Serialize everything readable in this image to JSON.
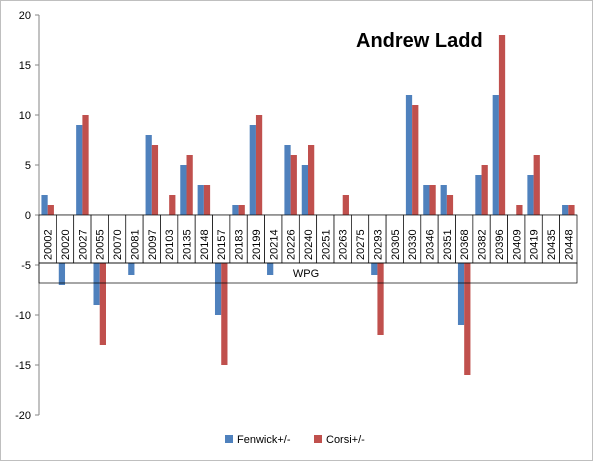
{
  "chart_data": {
    "type": "bar",
    "title": "Andrew Ladd",
    "group_label": "WPG",
    "categories": [
      "20002",
      "20020",
      "20027",
      "20055",
      "20070",
      "20081",
      "20097",
      "20103",
      "20135",
      "20148",
      "20157",
      "20183",
      "20199",
      "20214",
      "20226",
      "20240",
      "20251",
      "20263",
      "20275",
      "20293",
      "20305",
      "20330",
      "20346",
      "20351",
      "20368",
      "20382",
      "20396",
      "20409",
      "20419",
      "20435",
      "20448"
    ],
    "series": [
      {
        "name": "Fenwick+/-",
        "color": "#4f81bd",
        "values": [
          2,
          -7,
          9,
          -9,
          -1,
          -6,
          8,
          -1,
          5,
          3,
          -10,
          1,
          9,
          -6,
          7,
          5,
          -1,
          0,
          -1,
          -6,
          -1,
          12,
          3,
          3,
          -11,
          4,
          12,
          -4,
          4,
          -2,
          1
        ]
      },
      {
        "name": "Corsi+/-",
        "color": "#c0504d",
        "values": [
          1,
          -1,
          10,
          -13,
          -2,
          -1,
          7,
          2,
          6,
          3,
          -15,
          1,
          10,
          -1,
          6,
          7,
          -2,
          2,
          -1,
          -12,
          -1,
          11,
          3,
          2,
          -16,
          5,
          18,
          1,
          6,
          -3,
          1
        ]
      }
    ],
    "yticks": [
      20,
      15,
      10,
      5,
      0,
      -5,
      -10,
      -15,
      -20
    ],
    "ylim": [
      -20,
      20
    ],
    "legend": "bottom",
    "grid": false
  }
}
